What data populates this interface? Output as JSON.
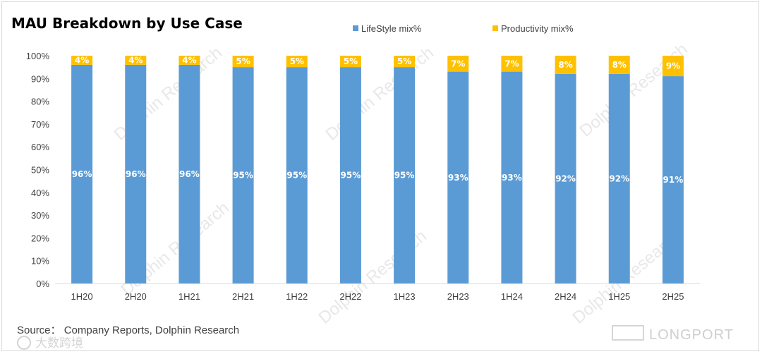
{
  "chart_data": {
    "type": "bar",
    "stacked": true,
    "title": "MAU Breakdown by Use Case",
    "categories": [
      "1H20",
      "2H20",
      "1H21",
      "2H21",
      "1H22",
      "2H22",
      "1H23",
      "2H23",
      "1H24",
      "2H24",
      "1H25",
      "2H25"
    ],
    "series": [
      {
        "name": "LifeStyle mix%",
        "color": "#5B9BD5",
        "values": [
          96,
          96,
          96,
          95,
          95,
          95,
          95,
          93,
          93,
          92,
          92,
          91
        ]
      },
      {
        "name": "Productivity mix%",
        "color": "#FFC000",
        "values": [
          4,
          4,
          4,
          5,
          5,
          5,
          5,
          7,
          7,
          8,
          8,
          9
        ]
      }
    ],
    "ylim": [
      0,
      100
    ],
    "yticks": [
      0,
      10,
      20,
      30,
      40,
      50,
      60,
      70,
      80,
      90,
      100
    ],
    "ytick_labels": [
      "0%",
      "10%",
      "20%",
      "30%",
      "40%",
      "50%",
      "60%",
      "70%",
      "80%",
      "90%",
      "100%"
    ],
    "legend_position": "top",
    "grid": false
  },
  "source_text": "Source： Company Reports, Dolphin Research",
  "watermark_text": "Dolphin Research",
  "brand_text": "LONGPORT",
  "corner_brand_text": "大数跨境"
}
